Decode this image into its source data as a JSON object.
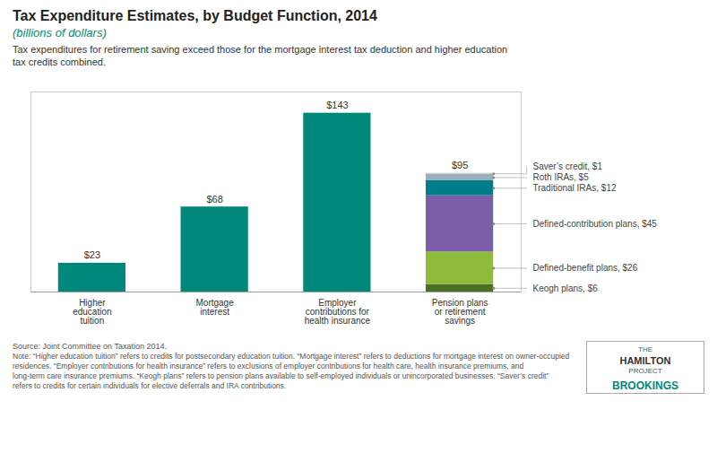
{
  "chart_data": {
    "type": "bar",
    "title": "Tax Expenditure Estimates, by Budget Function, 2014",
    "subtitle": "(billions of dollars)",
    "subtitle_color": "#00897B",
    "description": "Tax expenditures for retirement saving exceed those for the mortgage interest tax deduction and higher education\ntax credits combined.",
    "categories": [
      "Higher\neducation\ntuition",
      "Mortgage\ninterest",
      "Employer\ncontributions for\nhealth insurance",
      "Pension plans\nor retirement\nsavings"
    ],
    "stacked": true,
    "series": [
      {
        "color": "#00897B",
        "values": [
          23,
          68,
          143,
          null
        ]
      },
      {
        "name": "Keogh plans, $6",
        "color": "#4a7023",
        "values": [
          null,
          null,
          null,
          6
        ]
      },
      {
        "name": "Defined-benefit plans, $26",
        "color": "#8fbb3a",
        "values": [
          null,
          null,
          null,
          26
        ]
      },
      {
        "name": "Defined-contribution plans, $45",
        "color": "#7B5EA7",
        "values": [
          null,
          null,
          null,
          45
        ]
      },
      {
        "name": "Traditional IRAs, $12",
        "color": "#007B8A",
        "values": [
          null,
          null,
          null,
          12
        ]
      },
      {
        "name": "Roth IRAs, $5",
        "color": "#9ab0b8",
        "values": [
          null,
          null,
          null,
          5
        ]
      },
      {
        "name": "Saver’s credit, $1",
        "color": "#c8d4d8",
        "values": [
          null,
          null,
          null,
          1
        ]
      }
    ],
    "data_labels": true,
    "totals": [
      23,
      68,
      143,
      95
    ],
    "total_labels": [
      "$23",
      "$68",
      "$143",
      "$95"
    ],
    "ylim": [
      0,
      160
    ],
    "yticks": [],
    "tick_labels": "x",
    "source": "Source: Joint Committee on Taxation 2014.",
    "note": "Note: “Higher education tuition” refers to credits for postsecondary education tuition. “Mortgage interest” refers to deductions for mortgage interest on owner-occupied residences. “Employer contributions for health insurance” refers to exclusions of employer contributions for health care, health insurance premiums, and\nlong-term care insurance premiums. “Keogh plans” refers to pension plans available to self-employed individuals or unincorporated businesses. “Saver’s credit”\nrefers to credits for certain individuals for elective deferrals and IRA contributions.",
    "logo": [
      "THE",
      "HAMILTON",
      "PROJECT",
      "BROOKINGS"
    ],
    "logo_color": "#00897B"
  }
}
